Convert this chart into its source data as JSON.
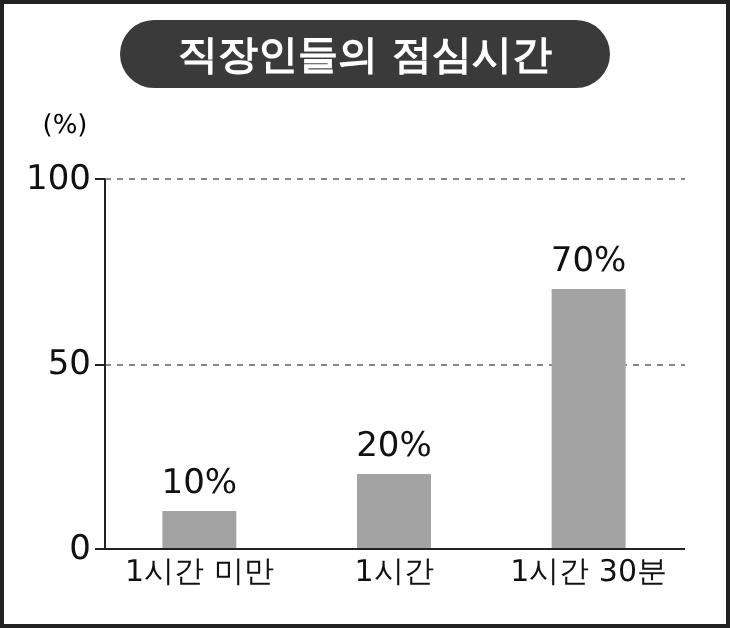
{
  "chart_data": {
    "type": "bar",
    "title": "직장인들의 점심시간",
    "ylabel": "(%)",
    "categories": [
      "1시간 미만",
      "1시간",
      "1시간 30분"
    ],
    "values": [
      10,
      20,
      70
    ],
    "color": "#a3a3a3",
    "value_labels": [
      "10%",
      "20%",
      "70%"
    ],
    "ylim": [
      0,
      100
    ],
    "yticks": [
      0,
      50,
      100
    ],
    "grid": "y"
  }
}
